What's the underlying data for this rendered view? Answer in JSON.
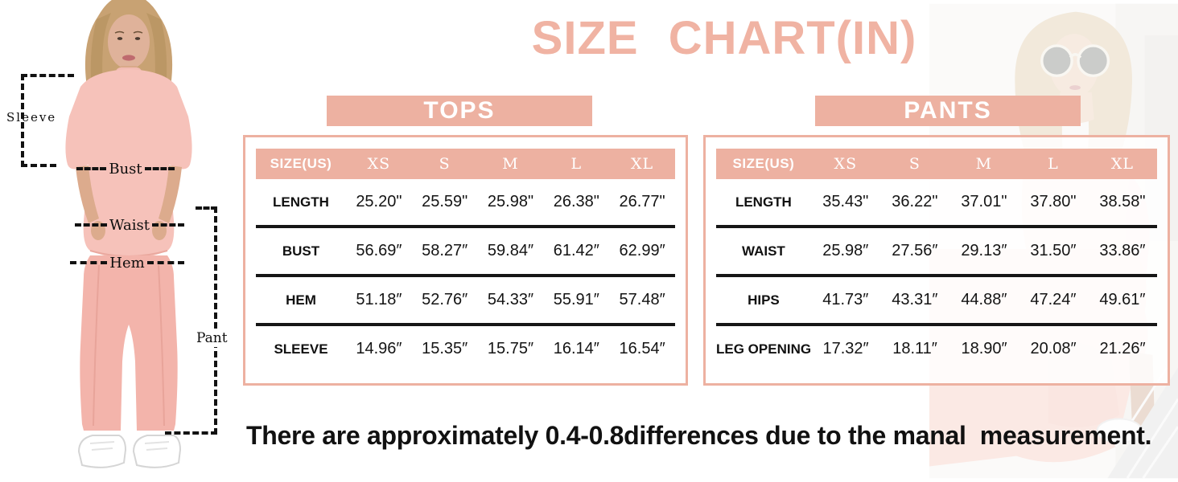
{
  "title": "SIZE CHART(IN)",
  "disclaimer": "There are approximately 0.4-0.8differences due to the manal  measurement.",
  "colors": {
    "accent": "#edb1a1",
    "title": "#f0b3a3",
    "divider": "#161616",
    "text": "#141414",
    "banner_text": "#ffffff"
  },
  "figure": {
    "sleeve": "Sleeve",
    "bust": "Bust",
    "waist": "Waist",
    "hem": "Hem",
    "pant": "Pant"
  },
  "chart_data": [
    {
      "type": "table",
      "title": "TOPS",
      "columns": [
        "SIZE(US)",
        "XS",
        "S",
        "M",
        "L",
        "XL"
      ],
      "rows": [
        {
          "label": "LENGTH",
          "values": [
            "25.20\"",
            "25.59\"",
            "25.98\"",
            "26.38\"",
            "26.77\""
          ]
        },
        {
          "label": "BUST",
          "values": [
            "56.69″",
            "58.27″",
            "59.84″",
            "61.42″",
            "62.99″"
          ]
        },
        {
          "label": "HEM",
          "values": [
            "51.18″",
            "52.76″",
            "54.33″",
            "55.91″",
            "57.48″"
          ]
        },
        {
          "label": "SLEEVE",
          "values": [
            "14.96″",
            "15.35″",
            "15.75″",
            "16.14″",
            "16.54″"
          ]
        }
      ]
    },
    {
      "type": "table",
      "title": "PANTS",
      "columns": [
        "SIZE(US)",
        "XS",
        "S",
        "M",
        "L",
        "XL"
      ],
      "rows": [
        {
          "label": "LENGTH",
          "values": [
            "35.43\"",
            "36.22\"",
            "37.01\"",
            "37.80\"",
            "38.58\""
          ]
        },
        {
          "label": "WAIST",
          "values": [
            "25.98″",
            "27.56″",
            "29.13″",
            "31.50″",
            "33.86″"
          ]
        },
        {
          "label": "HIPS",
          "values": [
            "41.73″",
            "43.31″",
            "44.88″",
            "47.24″",
            "49.61″"
          ]
        },
        {
          "label": "LEG OPENING",
          "values": [
            "17.32″",
            "18.11″",
            "18.90″",
            "20.08″",
            "21.26″"
          ]
        }
      ]
    }
  ]
}
